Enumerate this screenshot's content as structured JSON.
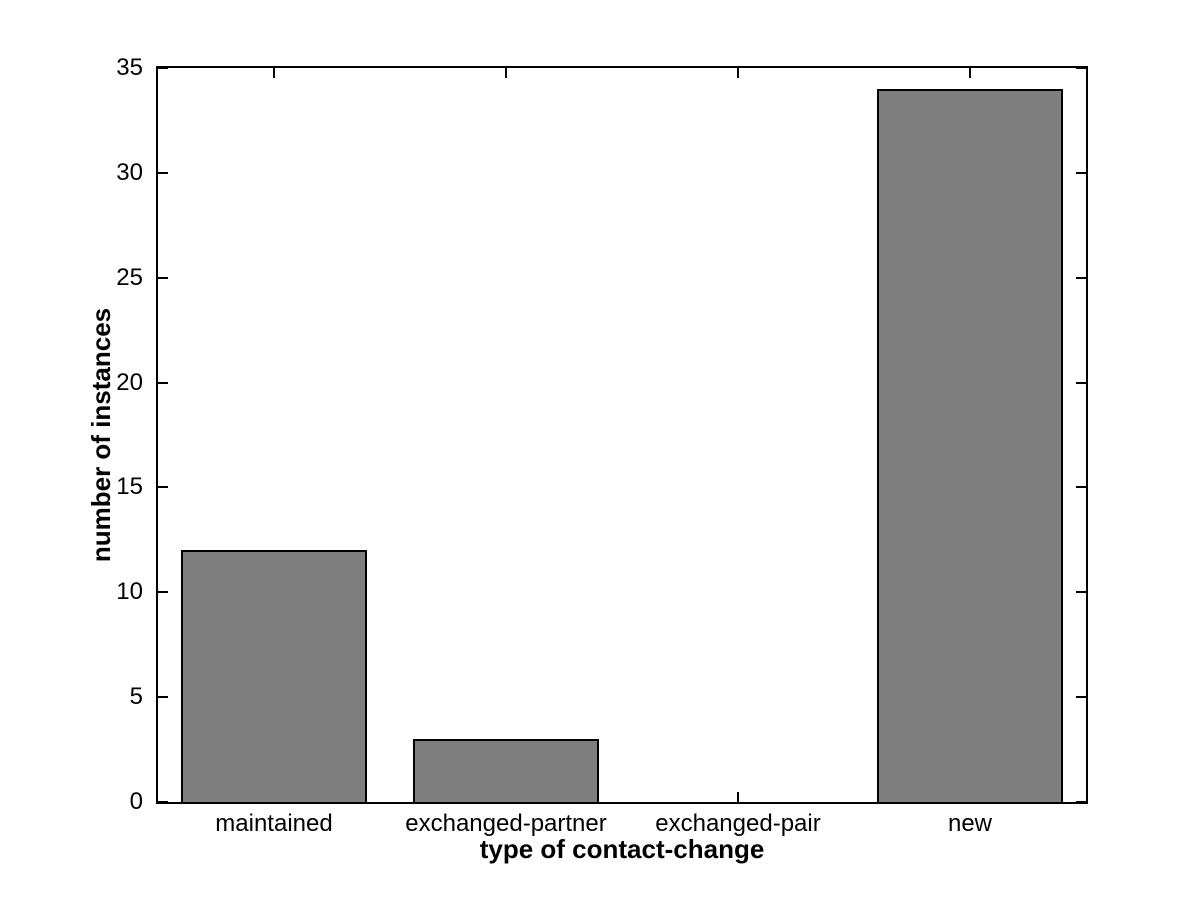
{
  "chart_data": {
    "type": "bar",
    "title": "",
    "xlabel": "type of contact-change",
    "ylabel": "number of instances",
    "categories": [
      "maintained",
      "exchanged-partner",
      "exchanged-pair",
      "new"
    ],
    "values": [
      12,
      3,
      0,
      34
    ],
    "ylim": [
      0,
      35
    ],
    "yticks": [
      0,
      5,
      10,
      15,
      20,
      25,
      30,
      35
    ],
    "xlim": [
      0.5,
      4.5
    ],
    "bar_width_fraction": 0.8,
    "bar_fill_color": "#7f7f7f",
    "bar_edge_color": "#000000",
    "axis_color": "#000000",
    "background_color": "#ffffff",
    "grid": false,
    "legend": null,
    "tick_direction": "in",
    "box": true
  }
}
